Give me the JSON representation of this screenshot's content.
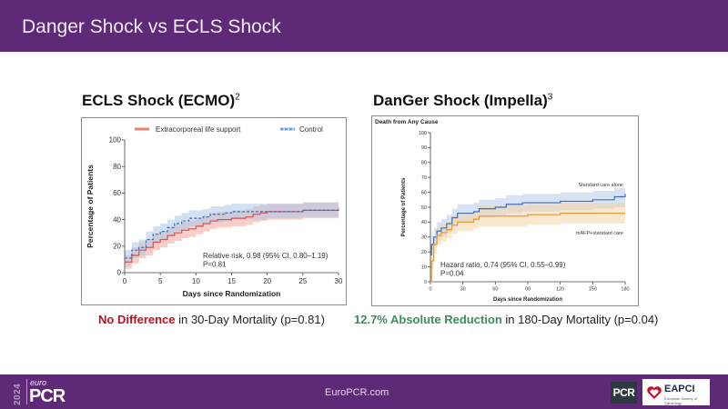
{
  "header": {
    "title": "Danger Shock vs ECLS Shock"
  },
  "panels": {
    "left": {
      "title": "ECLS Shock (ECMO)",
      "superscript": "2"
    },
    "right": {
      "title": "DanGer Shock (Impella)",
      "superscript": "3"
    }
  },
  "captions": {
    "left": {
      "highlight": "No Difference",
      "rest": " in 30-Day Mortality (p=0.81)",
      "highlight_color": "#c0101c"
    },
    "right": {
      "highlight": "12.7% Absolute Reduction",
      "rest": " in 180-Day Mortality (p=0.04)",
      "highlight_color": "#3a8e5c"
    }
  },
  "footer": {
    "url": "EuroPCR.com",
    "logo_year": "2024",
    "logo_euro": "euro",
    "logo_pcr": "PCR",
    "badge_pcr": "PCR",
    "badge_eapci": "EAPCI",
    "badge_eapci_sub": "European Society of Cardiology"
  },
  "chart_data": [
    {
      "type": "line",
      "title": "",
      "xlabel": "Days since Randomization",
      "ylabel": "Percentage of Patients",
      "xlim": [
        0,
        30
      ],
      "ylim": [
        0,
        100
      ],
      "xticks": [
        0,
        5,
        10,
        15,
        20,
        25,
        30
      ],
      "yticks": [
        0,
        20,
        40,
        60,
        80,
        100
      ],
      "legend": "top",
      "annotation": [
        "Relative risk, 0.98 (95% CI, 0.80–1.19)",
        "P=0.81"
      ],
      "series": [
        {
          "name": "Extracorporeal life support",
          "color": "#d9534f",
          "band_color": "#f2a59b",
          "style": "solid",
          "x": [
            0,
            1,
            2,
            3,
            4,
            5,
            6,
            7,
            8,
            9,
            10,
            11,
            12,
            13,
            15,
            17,
            18,
            19,
            20,
            25,
            30
          ],
          "y": [
            8,
            13,
            17,
            19,
            23,
            25,
            28,
            30,
            32,
            33,
            35,
            37,
            39,
            40,
            41,
            42,
            44,
            45,
            46,
            47,
            48
          ],
          "ci_low": [
            3,
            7,
            11,
            13,
            17,
            19,
            22,
            24,
            26,
            27,
            29,
            31,
            33,
            34,
            35,
            36,
            38,
            39,
            40,
            41,
            42
          ],
          "ci_high": [
            13,
            19,
            23,
            25,
            29,
            31,
            34,
            36,
            38,
            39,
            41,
            43,
            45,
            46,
            47,
            48,
            50,
            51,
            52,
            53,
            54
          ]
        },
        {
          "name": "Control",
          "color": "#3b6fb6",
          "band_color": "#a9c8ea",
          "style": "dashed",
          "x": [
            0,
            1,
            2,
            3,
            4,
            5,
            6,
            7,
            8,
            9,
            11,
            12,
            14,
            15,
            20,
            25,
            30
          ],
          "y": [
            11,
            17,
            19,
            25,
            29,
            31,
            34,
            37,
            39,
            41,
            42,
            44,
            45,
            46,
            46,
            47,
            49
          ],
          "ci_low": [
            5,
            11,
            13,
            19,
            23,
            25,
            28,
            31,
            33,
            35,
            36,
            38,
            39,
            40,
            41,
            42,
            43
          ],
          "ci_high": [
            17,
            23,
            25,
            31,
            35,
            37,
            40,
            43,
            45,
            47,
            48,
            50,
            51,
            52,
            52,
            53,
            55
          ]
        }
      ]
    },
    {
      "type": "line",
      "title": "Death from Any Cause",
      "xlabel": "Days since Randomization",
      "ylabel": "Percentage of Patients",
      "xlim": [
        0,
        180
      ],
      "ylim": [
        0,
        100
      ],
      "xticks": [
        0,
        30,
        60,
        90,
        120,
        150,
        180
      ],
      "yticks": [
        0,
        10,
        20,
        30,
        40,
        50,
        60,
        70,
        80,
        90,
        100
      ],
      "legend": "inline-right",
      "annotation": [
        "Hazard ratio, 0.74 (95% CI, 0.55–0.99)",
        "P=0.04"
      ],
      "series": [
        {
          "name": "Standard care alone",
          "color": "#3f6fb0",
          "band_color": "#b7cce8",
          "style": "solid",
          "x": [
            0,
            1,
            3,
            6,
            10,
            15,
            20,
            25,
            30,
            40,
            45,
            60,
            70,
            85,
            100,
            120,
            140,
            150,
            170,
            180
          ],
          "y": [
            18,
            25,
            30,
            34,
            36,
            39,
            43,
            46,
            46,
            47,
            49,
            50,
            52,
            53,
            53,
            54,
            54,
            55,
            57,
            59
          ],
          "ci_low": [
            12,
            19,
            24,
            28,
            30,
            33,
            37,
            40,
            40,
            41,
            43,
            44,
            46,
            47,
            47,
            48,
            48,
            49,
            50,
            52
          ],
          "ci_high": [
            24,
            31,
            36,
            40,
            42,
            45,
            49,
            52,
            52,
            53,
            55,
            56,
            58,
            59,
            59,
            60,
            60,
            61,
            63,
            65
          ]
        },
        {
          "name": "mAFP+standard care",
          "color": "#e39a3b",
          "band_color": "#f5d4a8",
          "style": "solid",
          "x": [
            0,
            1,
            3,
            6,
            10,
            15,
            20,
            25,
            30,
            40,
            45,
            60,
            90,
            105,
            120,
            180
          ],
          "y": [
            0,
            14,
            25,
            31,
            33,
            35,
            38,
            40,
            40,
            42,
            44,
            44,
            45,
            45,
            46,
            46
          ],
          "ci_low": [
            0,
            9,
            19,
            25,
            27,
            29,
            32,
            34,
            34,
            36,
            37,
            37,
            38,
            38,
            39,
            39
          ],
          "ci_high": [
            0,
            19,
            31,
            37,
            39,
            41,
            44,
            46,
            46,
            48,
            51,
            51,
            52,
            52,
            53,
            53
          ]
        }
      ]
    }
  ]
}
